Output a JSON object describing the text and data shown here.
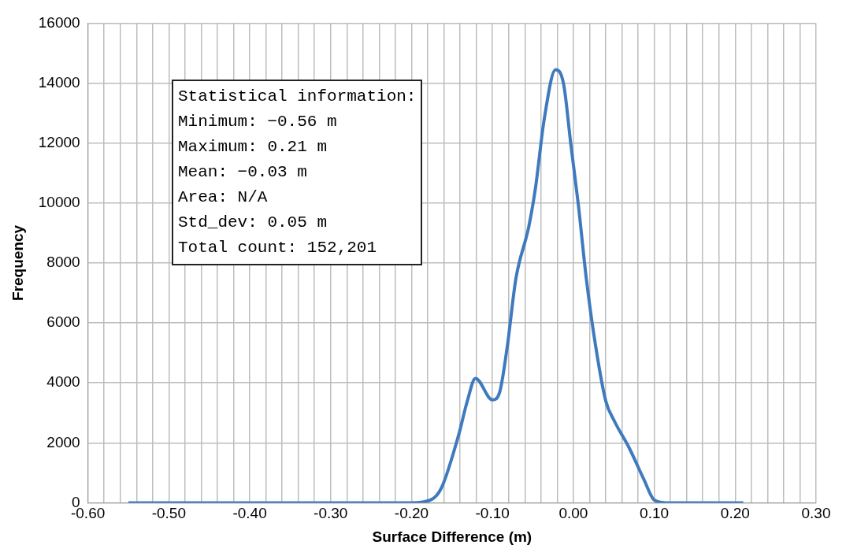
{
  "chart_data": {
    "type": "line",
    "xlabel": "Surface Difference (m)",
    "ylabel": "Frequency",
    "xlim": [
      -0.6,
      0.3
    ],
    "xticks": [
      {
        "value": -0.6,
        "label": "-0.60"
      },
      {
        "value": -0.58,
        "label": null
      },
      {
        "value": -0.56,
        "label": null
      },
      {
        "value": -0.54,
        "label": null
      },
      {
        "value": -0.52,
        "label": null
      },
      {
        "value": -0.5,
        "label": "-0.50"
      },
      {
        "value": -0.48,
        "label": null
      },
      {
        "value": -0.46,
        "label": null
      },
      {
        "value": -0.44,
        "label": null
      },
      {
        "value": -0.42,
        "label": null
      },
      {
        "value": -0.4,
        "label": "-0.40"
      },
      {
        "value": -0.38,
        "label": null
      },
      {
        "value": -0.36,
        "label": null
      },
      {
        "value": -0.34,
        "label": null
      },
      {
        "value": -0.32,
        "label": null
      },
      {
        "value": -0.3,
        "label": "-0.30"
      },
      {
        "value": -0.28,
        "label": null
      },
      {
        "value": -0.26,
        "label": null
      },
      {
        "value": -0.24,
        "label": null
      },
      {
        "value": -0.22,
        "label": null
      },
      {
        "value": -0.2,
        "label": "-0.20"
      },
      {
        "value": -0.18,
        "label": null
      },
      {
        "value": -0.16,
        "label": null
      },
      {
        "value": -0.14,
        "label": null
      },
      {
        "value": -0.12,
        "label": null
      },
      {
        "value": -0.1,
        "label": "-0.10"
      },
      {
        "value": -0.08,
        "label": null
      },
      {
        "value": -0.06,
        "label": null
      },
      {
        "value": -0.04,
        "label": null
      },
      {
        "value": -0.02,
        "label": null
      },
      {
        "value": 0,
        "label": "0.00"
      },
      {
        "value": 0.02,
        "label": null
      },
      {
        "value": 0.04,
        "label": null
      },
      {
        "value": 0.06,
        "label": null
      },
      {
        "value": 0.08,
        "label": null
      },
      {
        "value": 0.1,
        "label": "0.10"
      },
      {
        "value": 0.12,
        "label": null
      },
      {
        "value": 0.14,
        "label": null
      },
      {
        "value": 0.16,
        "label": null
      },
      {
        "value": 0.18,
        "label": null
      },
      {
        "value": 0.2,
        "label": "0.20"
      },
      {
        "value": 0.22,
        "label": null
      },
      {
        "value": 0.24,
        "label": null
      },
      {
        "value": 0.26,
        "label": null
      },
      {
        "value": 0.28,
        "label": null
      },
      {
        "value": 0.3,
        "label": "0.30"
      }
    ],
    "ylim": [
      0,
      16000
    ],
    "yticks": [
      0,
      2000,
      4000,
      6000,
      8000,
      10000,
      12000,
      14000,
      16000
    ],
    "grid": true,
    "legend": false,
    "marker": "none",
    "line_style": "solid",
    "annotations": [
      "Statistical information:",
      "Minimum: −0.56 m",
      "Maximum: 0.21 m",
      "Mean: −0.03 m",
      "Area: N/A",
      "Std_dev: 0.05 m",
      "Total count: 152,201"
    ],
    "x": [
      -0.55,
      -0.2,
      -0.176,
      -0.163,
      -0.142,
      -0.131,
      -0.121,
      -0.1,
      -0.091,
      -0.082,
      -0.071,
      -0.055,
      -0.047,
      -0.036,
      -0.022,
      -0.012,
      -0.003,
      0.006,
      0.016,
      0.027,
      0.04,
      0.051,
      0.069,
      0.087,
      0.1,
      0.114,
      0.21
    ],
    "series": [
      {
        "color": "#3f7abf",
        "values": [
          0,
          0,
          100,
          500,
          2240,
          3400,
          4150,
          3430,
          3700,
          5150,
          7480,
          9220,
          10470,
          12800,
          14450,
          13960,
          11930,
          9980,
          7480,
          5320,
          3400,
          2710,
          1830,
          790,
          90,
          0,
          0
        ]
      }
    ]
  }
}
